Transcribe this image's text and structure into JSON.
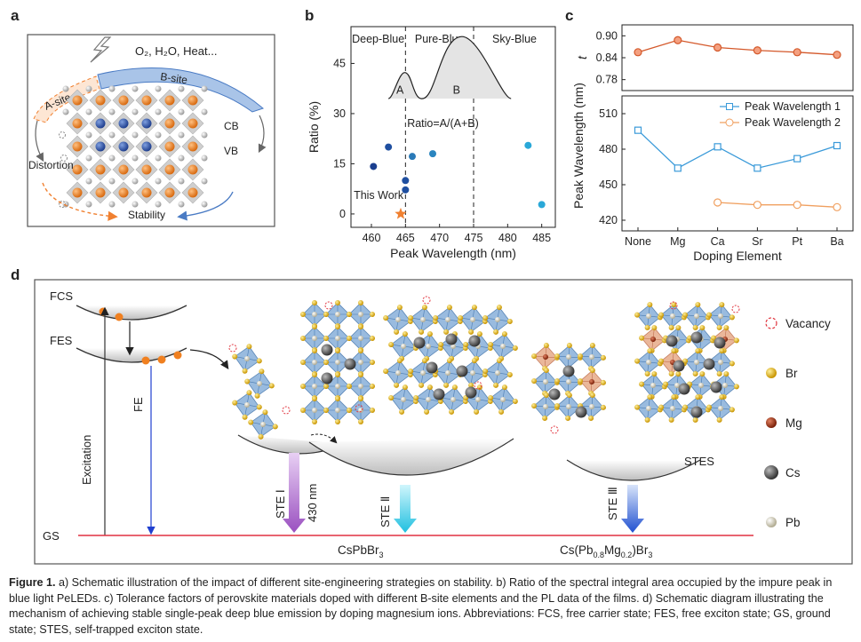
{
  "panels": {
    "a": {
      "label": "a",
      "env_text": "O₂, H₂O, Heat...",
      "asite": "A-site",
      "bsite": "B-site",
      "cb": "CB",
      "vb": "VB",
      "distortion": "Distortion",
      "stability": "Stability",
      "icons": [
        "lightning-icon"
      ]
    },
    "b": {
      "label": "b"
    },
    "c": {
      "label": "c"
    },
    "d": {
      "label": "d",
      "fcs": "FCS",
      "fes": "FES",
      "gs": "GS",
      "excitation": "Excitation",
      "fe": "FE",
      "ste1": "STE Ⅰ",
      "nm430": "430 nm",
      "ste2": "STE Ⅱ",
      "ste3": "STE Ⅲ",
      "stes": "STES",
      "mat1": "CsPbBr",
      "mat1_sub": "3",
      "mat2_a": "Cs(Pb",
      "mat2_s1": "0.8",
      "mat2_b": "Mg",
      "mat2_s2": "0.2",
      "mat2_c": ")Br",
      "mat2_s3": "3",
      "legend": [
        {
          "label": "Vacancy",
          "kind": "vacancy",
          "color": "#e0323c"
        },
        {
          "label": "Br",
          "kind": "ball",
          "color": "#e8b80c"
        },
        {
          "label": "Mg",
          "kind": "ball",
          "color": "#b8401a"
        },
        {
          "label": "Cs",
          "kind": "ball",
          "color": "#555555"
        },
        {
          "label": "Pb",
          "kind": "ball",
          "color": "#e8e4d4"
        }
      ]
    }
  },
  "chart_data": [
    {
      "id": "b",
      "type": "scatter",
      "title": "",
      "xlabel": "Peak Wavelength (nm)",
      "ylabel": "Ratio (%)",
      "xlim": [
        457,
        487
      ],
      "ylim": [
        -4,
        56
      ],
      "xticks": [
        460,
        465,
        470,
        475,
        480,
        485
      ],
      "yticks": [
        0,
        15,
        30,
        45
      ],
      "regions": [
        {
          "label": "Deep-Blue",
          "from": 457,
          "to": 465
        },
        {
          "label": "Pure-Blue",
          "from": 465,
          "to": 475
        },
        {
          "label": "Sky-Blue",
          "from": 475,
          "to": 487
        }
      ],
      "region_boundaries": [
        465,
        475
      ],
      "points": [
        {
          "x": 460.3,
          "y": 14.2,
          "color": "#1a3f8f"
        },
        {
          "x": 462.5,
          "y": 20.0,
          "color": "#1f4fa0"
        },
        {
          "x": 465.0,
          "y": 10.0,
          "color": "#1f4fa0"
        },
        {
          "x": 465.0,
          "y": 7.2,
          "color": "#1f4fa0"
        },
        {
          "x": 466.0,
          "y": 17.2,
          "color": "#2a7ab8"
        },
        {
          "x": 469.0,
          "y": 18.0,
          "color": "#2a85bf"
        },
        {
          "x": 483.0,
          "y": 20.5,
          "color": "#2aa8d8"
        },
        {
          "x": 485.0,
          "y": 2.8,
          "color": "#2aa8d8"
        }
      ],
      "this_work": {
        "x": 464.3,
        "y": 0,
        "label": "This Work",
        "color": "#f08030"
      },
      "inset": {
        "peak_a": "A",
        "peak_b": "B",
        "formula": "Ratio=A/(A+B)"
      }
    },
    {
      "id": "c-top",
      "type": "line",
      "ylabel": "t",
      "categories": [
        "None",
        "Mg",
        "Ca",
        "Sr",
        "Pt",
        "Ba"
      ],
      "ylim": [
        0.75,
        0.93
      ],
      "yticks": [
        0.78,
        0.84,
        0.9
      ],
      "series": [
        {
          "name": "Tolerance factor",
          "color": "#d4582a",
          "values": [
            0.855,
            0.888,
            0.868,
            0.86,
            0.855,
            0.848
          ]
        }
      ]
    },
    {
      "id": "c-bottom",
      "type": "line",
      "xlabel": "Doping Element",
      "ylabel": "Peak Wavelength (nm)",
      "categories": [
        "None",
        "Mg",
        "Ca",
        "Sr",
        "Pt",
        "Ba"
      ],
      "ylim": [
        411,
        525
      ],
      "yticks": [
        420,
        450,
        480,
        510
      ],
      "legend_position": "top-right",
      "series": [
        {
          "name": "Peak Wavelength 1",
          "color": "#3a9ad9",
          "marker": "square",
          "values": [
            496,
            464,
            482,
            464,
            472,
            483
          ]
        },
        {
          "name": "Peak Wavelength 2",
          "color": "#f0a060",
          "marker": "circle",
          "values": [
            null,
            null,
            435,
            433,
            433,
            431
          ]
        }
      ]
    }
  ],
  "caption": {
    "figure_label": "Figure 1.",
    "text": " a) Schematic illustration of the impact of different site-engineering strategies on stability. b) Ratio of the spectral integral area occupied by the impure peak in blue light PeLEDs. c) Tolerance factors of perovskite materials doped with different B-site elements and the PL data of the films. d) Schematic diagram illustrating the mechanism of achieving stable single-peak deep blue emission by doping magnesium ions. Abbreviations: FCS, free carrier state; FES, free exciton state; GS, ground state; STES, self-trapped exciton state."
  }
}
